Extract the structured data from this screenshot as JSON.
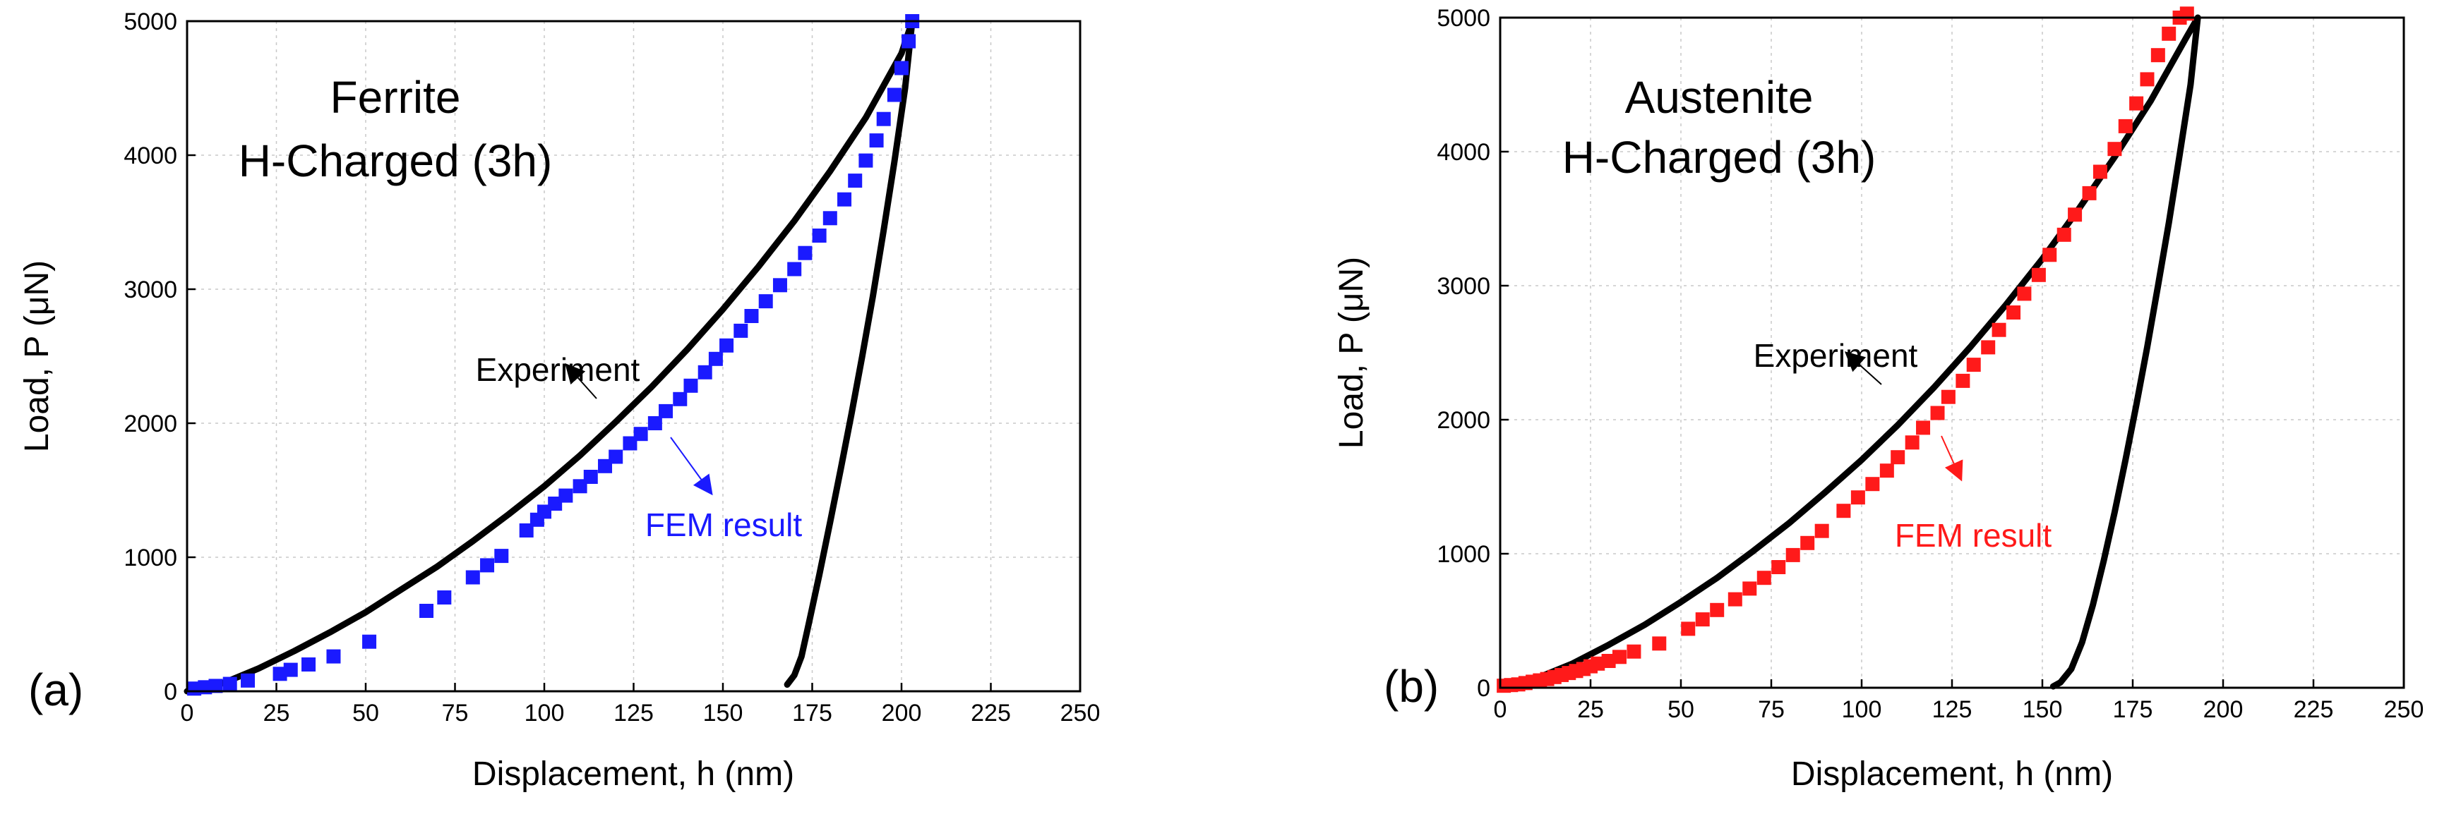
{
  "chart_data": [
    {
      "type": "line",
      "panel_label": "(a)",
      "title": "Ferrite",
      "subtitle": "H-Charged (3h)",
      "xlabel": "Displacement, h (nm)",
      "ylabel": "Load, P (μN)",
      "xlim": [
        0,
        250
      ],
      "ylim": [
        0,
        5000
      ],
      "xticks": [
        0,
        25,
        50,
        75,
        100,
        125,
        150,
        175,
        200,
        225,
        250
      ],
      "yticks": [
        0,
        1000,
        2000,
        3000,
        4000,
        5000
      ],
      "grid": true,
      "fem_color": "#1a1aff",
      "series": [
        {
          "name": "Experiment",
          "kind": "line",
          "color": "#000000",
          "x": [
            0,
            10,
            20,
            30,
            40,
            50,
            60,
            70,
            80,
            90,
            100,
            110,
            120,
            130,
            140,
            150,
            160,
            170,
            180,
            190,
            200,
            203,
            201,
            198,
            195,
            192,
            189,
            186,
            183,
            180,
            177,
            174,
            172,
            170,
            168
          ],
          "y": [
            0,
            60,
            170,
            300,
            440,
            590,
            760,
            930,
            1120,
            1320,
            1530,
            1760,
            2010,
            2270,
            2550,
            2850,
            3170,
            3510,
            3880,
            4280,
            4760,
            5000,
            4500,
            3950,
            3440,
            2950,
            2500,
            2070,
            1660,
            1260,
            870,
            500,
            260,
            120,
            50
          ]
        },
        {
          "name": "FEM result",
          "kind": "markers",
          "color": "#1a1aff",
          "x": [
            2,
            5,
            8,
            12,
            17,
            26,
            29,
            34,
            41,
            51,
            67,
            72,
            80,
            84,
            88,
            95,
            98,
            100,
            103,
            106,
            110,
            113,
            117,
            120,
            124,
            127,
            131,
            134,
            138,
            141,
            145,
            148,
            151,
            155,
            158,
            162,
            166,
            170,
            173,
            177,
            180,
            184,
            187,
            190,
            193,
            195,
            198,
            200,
            202,
            203
          ],
          "y": [
            20,
            30,
            40,
            55,
            80,
            130,
            160,
            200,
            260,
            370,
            600,
            700,
            850,
            940,
            1010,
            1200,
            1280,
            1340,
            1400,
            1460,
            1530,
            1600,
            1680,
            1750,
            1850,
            1920,
            2000,
            2090,
            2180,
            2280,
            2380,
            2480,
            2580,
            2690,
            2800,
            2910,
            3030,
            3150,
            3270,
            3400,
            3530,
            3670,
            3810,
            3960,
            4110,
            4270,
            4450,
            4650,
            4850,
            5000
          ]
        }
      ],
      "annotations": [
        {
          "text": "Experiment",
          "x": 140,
          "y": 2700,
          "color": "#000000"
        },
        {
          "text": "FEM result",
          "x": 190,
          "y": 1330,
          "color": "#1a1aff"
        }
      ]
    },
    {
      "type": "line",
      "panel_label": "(b)",
      "title": "Austenite",
      "subtitle": "H-Charged (3h)",
      "xlabel": "Displacement, h (nm)",
      "ylabel": "Load, P (μN)",
      "xlim": [
        0,
        250
      ],
      "ylim": [
        0,
        5000
      ],
      "xticks": [
        0,
        25,
        50,
        75,
        100,
        125,
        150,
        175,
        200,
        225,
        250
      ],
      "yticks": [
        0,
        1000,
        2000,
        3000,
        4000,
        5000
      ],
      "grid": true,
      "fem_color": "#ff1a1a",
      "series": [
        {
          "name": "Experiment",
          "kind": "line",
          "color": "#000000",
          "x": [
            0,
            10,
            20,
            30,
            40,
            50,
            60,
            70,
            80,
            90,
            100,
            110,
            120,
            130,
            140,
            150,
            160,
            170,
            180,
            190,
            193,
            191,
            188,
            185,
            182,
            179,
            176,
            173,
            170,
            167,
            164,
            161,
            158,
            155,
            153
          ],
          "y": [
            0,
            70,
            180,
            320,
            470,
            640,
            820,
            1020,
            1230,
            1460,
            1700,
            1960,
            2240,
            2540,
            2860,
            3200,
            3570,
            3960,
            4380,
            4860,
            5000,
            4500,
            3980,
            3470,
            3000,
            2540,
            2110,
            1700,
            1310,
            950,
            620,
            340,
            140,
            40,
            10
          ]
        },
        {
          "name": "FEM result",
          "kind": "markers",
          "color": "#ff1a1a",
          "x": [
            1,
            3,
            5,
            7,
            9,
            11,
            13,
            15,
            17,
            19,
            21,
            23,
            25,
            27,
            30,
            33,
            37,
            44,
            52,
            56,
            60,
            65,
            69,
            73,
            77,
            81,
            85,
            89,
            95,
            99,
            103,
            107,
            110,
            114,
            117,
            121,
            124,
            128,
            131,
            135,
            138,
            142,
            145,
            149,
            152,
            156,
            159,
            163,
            166,
            170,
            173,
            176,
            179,
            182,
            185,
            188,
            190
          ],
          "y": [
            15,
            20,
            25,
            35,
            45,
            55,
            65,
            80,
            95,
            110,
            125,
            140,
            160,
            180,
            200,
            230,
            270,
            330,
            440,
            510,
            580,
            660,
            740,
            820,
            900,
            990,
            1080,
            1170,
            1320,
            1420,
            1520,
            1620,
            1720,
            1830,
            1940,
            2050,
            2170,
            2290,
            2410,
            2540,
            2670,
            2800,
            2940,
            3080,
            3230,
            3380,
            3530,
            3690,
            3850,
            4020,
            4190,
            4360,
            4540,
            4720,
            4880,
            5000,
            5030
          ]
        }
      ],
      "annotations": [
        {
          "text": "Experiment",
          "x": 132,
          "y": 2700,
          "color": "#000000"
        },
        {
          "text": "FEM result",
          "x": 178,
          "y": 1200,
          "color": "#ff1a1a"
        }
      ]
    }
  ]
}
